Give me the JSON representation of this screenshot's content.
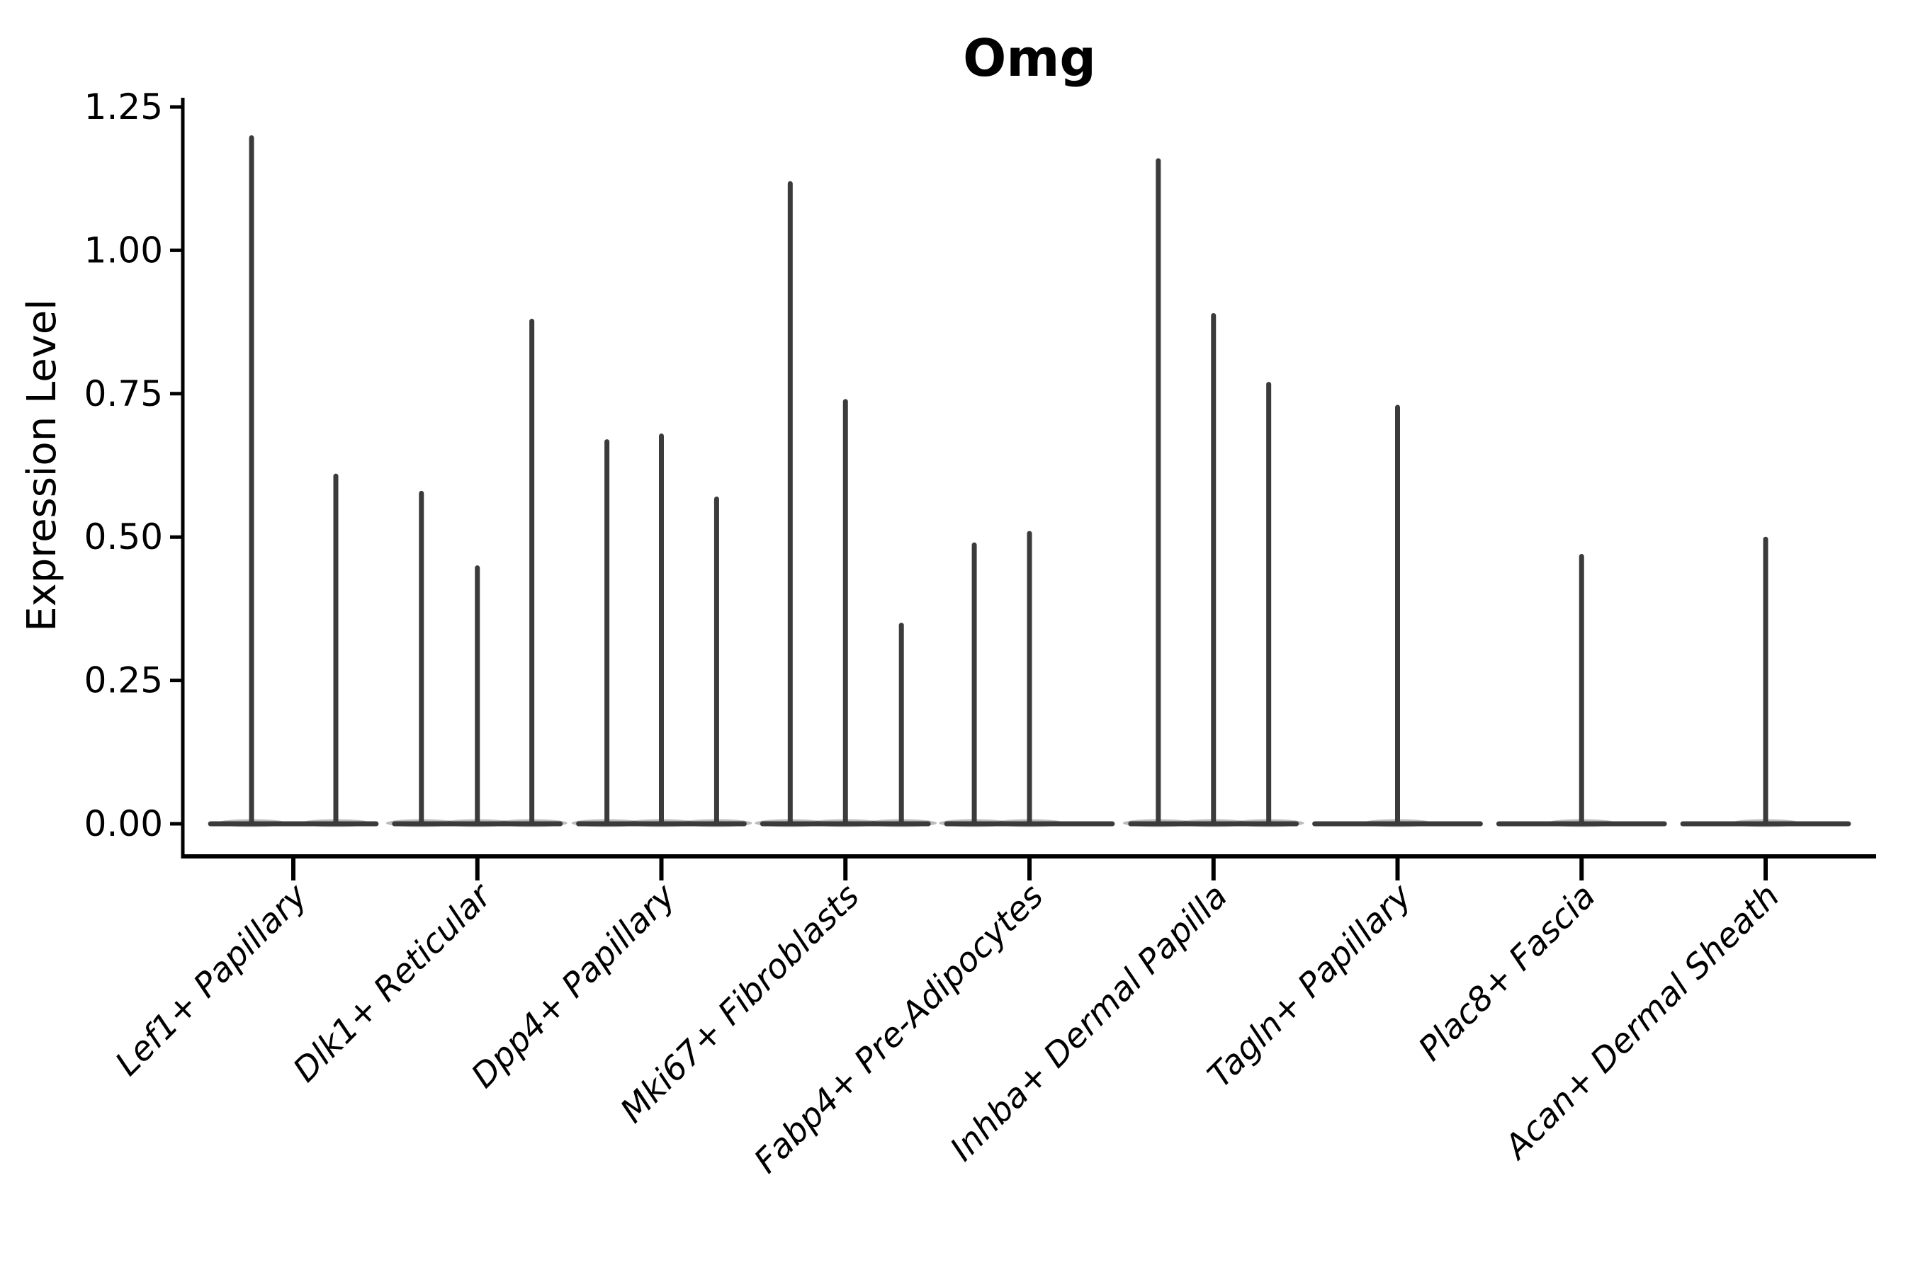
{
  "chart_data": {
    "type": "violin",
    "title": "Omg",
    "ylabel": "Expression Level",
    "xlabel": "",
    "ylim": [
      0,
      1.25
    ],
    "grid": false,
    "legend_position": "none",
    "y_ticks": [
      {
        "label": "0.00",
        "value": 0.0
      },
      {
        "label": "0.25",
        "value": 0.25
      },
      {
        "label": "0.50",
        "value": 0.5
      },
      {
        "label": "0.75",
        "value": 0.75
      },
      {
        "label": "1.00",
        "value": 1.0
      },
      {
        "label": "1.25",
        "value": 1.25
      }
    ],
    "categories": [
      "Lef1+ Papillary",
      "Dlk1+ Reticular",
      "Dpp4+ Papillary",
      "Mki67+ Fibroblasts",
      "Fabp4+ Pre-Adipocytes",
      "Inhba+ Dermal Papilla",
      "Tagln+ Papillary",
      "Plac8+ Fascia",
      "Acan+ Dermal Sheath"
    ],
    "violins": [
      {
        "category": "Lef1+ Papillary",
        "spikes": [
          {
            "offset_frac": -0.227,
            "max": 1.2
          },
          {
            "offset_frac": 0.231,
            "max": 0.61
          }
        ]
      },
      {
        "category": "Dlk1+ Reticular",
        "spikes": [
          {
            "offset_frac": -0.304,
            "max": 0.58
          },
          {
            "offset_frac": 0.0,
            "max": 0.45
          },
          {
            "offset_frac": 0.296,
            "max": 0.88
          }
        ]
      },
      {
        "category": "Dpp4+ Papillary",
        "spikes": [
          {
            "offset_frac": -0.296,
            "max": 0.67
          },
          {
            "offset_frac": 0.0,
            "max": 0.68
          },
          {
            "offset_frac": 0.3,
            "max": 0.57
          }
        ]
      },
      {
        "category": "Mki67+ Fibroblasts",
        "spikes": [
          {
            "offset_frac": -0.3,
            "max": 1.12
          },
          {
            "offset_frac": 0.0,
            "max": 0.74
          },
          {
            "offset_frac": 0.304,
            "max": 0.35
          }
        ]
      },
      {
        "category": "Fabp4+ Pre-Adipocytes",
        "spikes": [
          {
            "offset_frac": -0.3,
            "max": 0.49
          },
          {
            "offset_frac": 0.0,
            "max": 0.51
          }
        ]
      },
      {
        "category": "Inhba+ Dermal Papilla",
        "spikes": [
          {
            "offset_frac": -0.3,
            "max": 1.16
          },
          {
            "offset_frac": 0.0,
            "max": 0.89
          },
          {
            "offset_frac": 0.3,
            "max": 0.77
          }
        ]
      },
      {
        "category": "Tagln+ Papillary",
        "spikes": [
          {
            "offset_frac": 0.0,
            "max": 0.73
          }
        ]
      },
      {
        "category": "Plac8+ Fascia",
        "spikes": [
          {
            "offset_frac": 0.0,
            "max": 0.47
          }
        ]
      },
      {
        "category": "Acan+ Dermal Sheath",
        "spikes": [
          {
            "offset_frac": 0.0,
            "max": 0.5
          }
        ]
      }
    ],
    "violin_halfwidth_frac": 0.45,
    "colors": {
      "violin": "#3b3b3b",
      "axis": "#000000",
      "text": "#000000",
      "background": "#ffffff"
    }
  }
}
